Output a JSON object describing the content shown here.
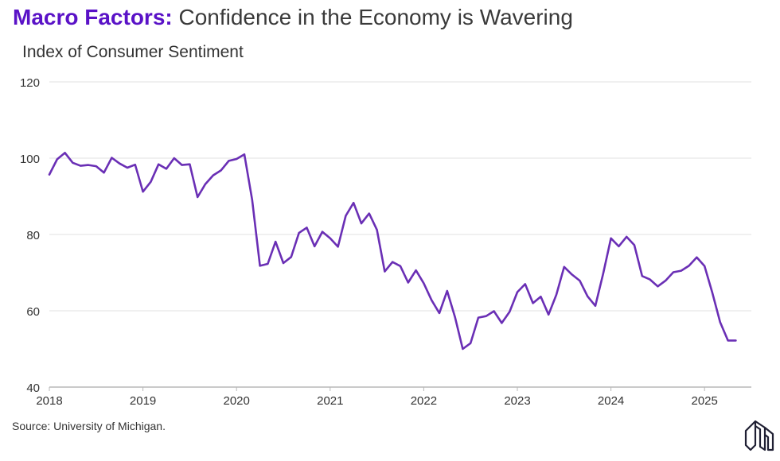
{
  "header": {
    "title_brand": "Macro Factors:",
    "title_rest": " Confidence in the Economy is Wavering",
    "subtitle": "Index of Consumer Sentiment"
  },
  "footer": {
    "source": "Source: University of Michigan."
  },
  "logo": {
    "icon": "brand-logo-icon"
  },
  "colors": {
    "line": "#6a2fb5",
    "brand": "#5a12c7",
    "grid": "#e2e2e2",
    "axis": "#b8b8b8",
    "text": "#333333"
  },
  "chart_data": {
    "type": "line",
    "title": "Index of Consumer Sentiment",
    "xlabel": "",
    "ylabel": "",
    "xlim": [
      2018,
      2025.5
    ],
    "ylim": [
      40,
      120
    ],
    "yticks": [
      40,
      60,
      80,
      100,
      120
    ],
    "xticks": [
      2018,
      2019,
      2020,
      2021,
      2022,
      2023,
      2024,
      2025
    ],
    "grid": true,
    "series": [
      {
        "name": "Index of Consumer Sentiment",
        "start": 2018.0,
        "step": 0.08333,
        "values": [
          95.7,
          99.7,
          101.4,
          98.8,
          98.0,
          98.2,
          97.9,
          96.2,
          100.1,
          98.6,
          97.5,
          98.3,
          91.2,
          93.8,
          98.4,
          97.2,
          100.0,
          98.2,
          98.4,
          89.8,
          93.2,
          95.5,
          96.8,
          99.3,
          99.8,
          101.0,
          89.1,
          71.8,
          72.3,
          78.1,
          72.5,
          74.1,
          80.4,
          81.8,
          76.9,
          80.7,
          79.0,
          76.8,
          84.9,
          88.3,
          82.9,
          85.5,
          81.2,
          70.3,
          72.8,
          71.7,
          67.4,
          70.6,
          67.2,
          62.8,
          59.4,
          65.2,
          58.4,
          50.0,
          51.5,
          58.2,
          58.6,
          59.9,
          56.8,
          59.7,
          64.9,
          67.0,
          62.0,
          63.7,
          59.0,
          64.2,
          71.5,
          69.5,
          67.9,
          63.8,
          61.3,
          69.7,
          79.0,
          76.9,
          79.4,
          77.2,
          69.1,
          68.2,
          66.4,
          67.9,
          70.1,
          70.5,
          71.8,
          74.0,
          71.7,
          64.7,
          57.0,
          52.2,
          52.2
        ]
      }
    ]
  }
}
